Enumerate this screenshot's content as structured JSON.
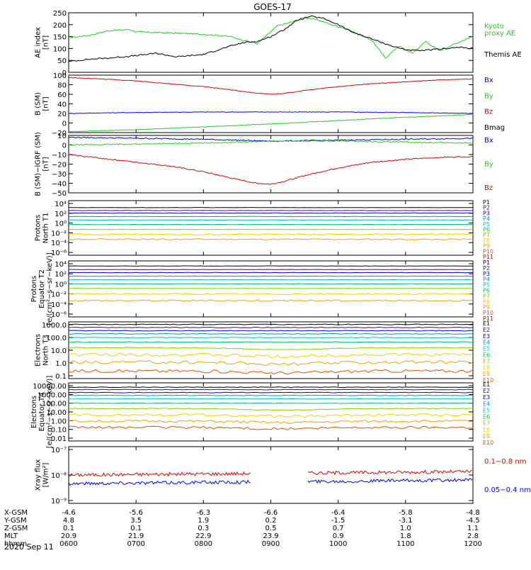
{
  "title": "GOES-17",
  "date_label": "2020 Sep 11",
  "xaxis": {
    "row_labels": [
      "X-GSM",
      "Y-GSM",
      "Z-GSM",
      "MLT",
      "hhmm"
    ],
    "rows": [
      [
        "-4.6",
        "-5.6",
        "-6.3",
        "-6.6",
        "-6.4",
        "-5.8",
        "-4.8"
      ],
      [
        "4.8",
        "3.5",
        "1.9",
        "0.2",
        "-1.5",
        "-3.1",
        "-4.5"
      ],
      [
        "0.1",
        "0.1",
        "0.3",
        "0.5",
        "0.7",
        "1.0",
        "1.1"
      ],
      [
        "20.9",
        "21.9",
        "22.9",
        "23.9",
        "0.9",
        "1.8",
        "2.8"
      ],
      [
        "0600",
        "0700",
        "0800",
        "0900",
        "1000",
        "1100",
        "1200"
      ]
    ]
  },
  "colors": {
    "black": "#000000",
    "blue": "#0000ff",
    "green": "#22cc22",
    "red": "#dd0000",
    "p": [
      "#000000",
      "#3a1060",
      "#0000cc",
      "#0090e0",
      "#00c0c0",
      "#00c060",
      "#80d000",
      "#f0d000",
      "#f0a000",
      "#e05000",
      "#cc0000"
    ]
  },
  "chart_data": [
    {
      "type": "line",
      "id": "ae",
      "ylabel": [
        "AE index",
        "[nT]"
      ],
      "ylim": [
        0,
        250
      ],
      "yticks": [
        "0",
        "50",
        "100",
        "150",
        "200",
        "250"
      ],
      "x": [
        6,
        7,
        8,
        9,
        10,
        11,
        12
      ],
      "series": [
        {
          "name": "Kyoto proxy AE",
          "x": [
            6.0,
            6.3,
            6.6,
            6.9,
            7.0,
            7.5,
            8.0,
            8.4,
            8.6,
            8.8,
            9.0,
            9.1,
            9.3,
            9.5,
            9.7,
            9.9,
            10.1,
            10.3,
            10.5,
            10.7,
            10.9,
            11.1,
            11.3,
            11.5,
            11.7,
            11.9,
            12.0
          ],
          "values": [
            145,
            155,
            175,
            180,
            170,
            165,
            160,
            150,
            135,
            120,
            170,
            195,
            210,
            230,
            220,
            200,
            185,
            160,
            135,
            60,
            110,
            80,
            130,
            90,
            115,
            140,
            150
          ]
        },
        {
          "name": "Themis AE",
          "x": [
            6.0,
            6.3,
            6.6,
            7.0,
            7.3,
            7.6,
            8.0,
            8.4,
            8.6,
            8.8,
            9.0,
            9.2,
            9.4,
            9.6,
            9.8,
            10.0,
            10.2,
            10.4,
            10.6,
            10.8,
            11.0,
            11.2,
            11.4,
            11.6,
            11.8,
            12.0
          ],
          "values": [
            45,
            55,
            60,
            70,
            80,
            65,
            75,
            110,
            125,
            130,
            150,
            180,
            220,
            235,
            225,
            200,
            170,
            150,
            130,
            110,
            95,
            90,
            95,
            100,
            105,
            100
          ]
        }
      ],
      "legend_outside": [
        {
          "text": "Kyoto",
          "color_key": "green"
        },
        {
          "text": "proxy AE",
          "color_key": "green"
        },
        {
          "text": "Themis AE",
          "color_key": "black"
        }
      ]
    },
    {
      "type": "line",
      "id": "bsm",
      "ylabel": [
        "B (SM)",
        "[nT]"
      ],
      "ylim": [
        -20,
        100
      ],
      "yticks": [
        "−20",
        "0",
        "20",
        "40",
        "60",
        "80",
        "100"
      ],
      "series": [
        {
          "name": "Bx",
          "x": [
            6,
            7,
            8,
            9,
            10,
            11,
            12
          ],
          "values": [
            20,
            22,
            23,
            23,
            23,
            22,
            20
          ]
        },
        {
          "name": "By",
          "x": [
            6,
            7,
            8,
            9,
            10,
            11,
            12
          ],
          "values": [
            -18,
            -14,
            -8,
            -2,
            5,
            12,
            18
          ]
        },
        {
          "name": "Bz",
          "x": [
            6,
            6.5,
            7,
            7.5,
            8,
            8.5,
            8.8,
            9.0,
            9.2,
            9.5,
            10,
            10.5,
            11,
            11.5,
            12
          ],
          "values": [
            95,
            92,
            88,
            82,
            76,
            68,
            62,
            60,
            62,
            68,
            76,
            82,
            86,
            90,
            92
          ]
        }
      ],
      "legend_outside": [
        {
          "text": "Bx",
          "color_key": "blue"
        },
        {
          "text": "By",
          "color_key": "green"
        },
        {
          "text": "Bz",
          "color_key": "red"
        },
        {
          "text": "Bmag",
          "color_key": "black"
        }
      ]
    },
    {
      "type": "line",
      "id": "bigrf",
      "ylabel": [
        "B (SM)−IGRF (SM)",
        "[nT]"
      ],
      "ylim": [
        -50,
        10
      ],
      "yticks": [
        "−50",
        "−40",
        "−30",
        "−20",
        "−10",
        "0",
        "10"
      ],
      "series": [
        {
          "name": "Bx",
          "x": [
            6,
            7,
            8,
            9,
            10,
            11,
            12
          ],
          "values": [
            8,
            7,
            6,
            4,
            5,
            6,
            7
          ]
        },
        {
          "name": "By",
          "x": [
            6,
            7,
            8,
            9,
            10,
            11,
            12
          ],
          "values": [
            0,
            1,
            2,
            4,
            4,
            3,
            2
          ]
        },
        {
          "name": "Bz",
          "x": [
            6,
            6.5,
            7,
            7.5,
            8,
            8.5,
            8.8,
            9.0,
            9.2,
            9.5,
            10,
            10.5,
            11,
            11.5,
            12
          ],
          "values": [
            -10,
            -14,
            -18,
            -22,
            -28,
            -36,
            -40,
            -41,
            -38,
            -32,
            -24,
            -18,
            -15,
            -13,
            -12
          ]
        }
      ],
      "legend_outside": [
        {
          "text": "Bx",
          "color_key": "blue"
        },
        {
          "text": "By",
          "color_key": "green"
        },
        {
          "text": "Bz",
          "color_key": "red"
        }
      ]
    },
    {
      "type": "line",
      "id": "protons_n",
      "ylabel": [
        "Protons",
        "North T1"
      ],
      "ylog": true,
      "ylim": [
        -7,
        4
      ],
      "yticks": [
        "10⁴",
        "10²",
        "10⁰",
        "10⁻²",
        "10⁻⁴",
        "10⁻⁶"
      ],
      "channel_labels": [
        "P1",
        "P2",
        "P3",
        "P4",
        "P5",
        "P6",
        "P7",
        "P8",
        "P9",
        "P10",
        "P11"
      ],
      "series": [
        {
          "name": "P1",
          "log10": 2.6
        },
        {
          "name": "P2",
          "log10": 2.0
        },
        {
          "name": "P3",
          "log10": 1.5
        },
        {
          "name": "P4",
          "log10": 0.8
        },
        {
          "name": "P5",
          "log10": 0.1
        },
        {
          "name": "P6",
          "log10": -0.8
        },
        {
          "name": "P7",
          "log10": -1.8
        },
        {
          "name": "P8",
          "log10": -2.8
        },
        {
          "name": "P9",
          "log10": -3.8
        }
      ]
    },
    {
      "type": "line",
      "id": "protons_e",
      "ylabel": [
        "Protons",
        "Equator T2",
        "[e/(cm²−s−sr−keV)]"
      ],
      "ylog": true,
      "ylim": [
        -7,
        4
      ],
      "yticks": [
        "10⁴",
        "10²",
        "10⁰",
        "10⁻²",
        "10⁻⁴",
        "10⁻⁶"
      ],
      "channel_labels": [
        "P1",
        "P2",
        "P3",
        "P4",
        "P5",
        "P6",
        "P7",
        "P8",
        "P9",
        "P10",
        "P11"
      ],
      "series": [
        {
          "name": "P1",
          "log10": 3.0
        },
        {
          "name": "P2",
          "log10": 2.3
        },
        {
          "name": "P3",
          "log10": 1.7
        },
        {
          "name": "P4",
          "log10": 1.0
        },
        {
          "name": "P5",
          "log10": 0.3
        },
        {
          "name": "P6",
          "log10": -0.5
        },
        {
          "name": "P7",
          "log10": -1.4
        },
        {
          "name": "P8",
          "log10": -2.5
        },
        {
          "name": "P9",
          "log10": -3.8
        }
      ]
    },
    {
      "type": "line",
      "id": "electrons_n",
      "ylabel": [
        "Electrons",
        "North T3"
      ],
      "ylog": true,
      "ylim": [
        -1,
        3.5
      ],
      "yticks": [
        "1000.0",
        "100.0",
        "10.0",
        "1.0",
        "0.1"
      ],
      "channel_labels": [
        "E1",
        "E2",
        "E3",
        "E4",
        "E5",
        "E6",
        "E7",
        "E8",
        "E9",
        "E10"
      ],
      "series": [
        {
          "name": "E1",
          "log10": 3.3
        },
        {
          "name": "E2",
          "log10": 3.05
        },
        {
          "name": "E3",
          "log10": 2.8
        },
        {
          "name": "E4",
          "log10": 2.55
        },
        {
          "name": "E5",
          "log10": 2.25
        },
        {
          "name": "E6",
          "log10": 1.9
        },
        {
          "name": "E7",
          "log10": 1.45
        },
        {
          "name": "E8",
          "log10": 0.9
        },
        {
          "name": "E9",
          "log10": 0.3
        },
        {
          "name": "E10",
          "log10": -0.4
        }
      ]
    },
    {
      "type": "line",
      "id": "electrons_e",
      "ylabel": [
        "Electrons",
        "Equator T4",
        "[e/(cm²−s−sr−keV)]"
      ],
      "ylog": true,
      "ylim": [
        -2,
        4
      ],
      "yticks": [
        "10000.00",
        "1000.00",
        "100.00",
        "10.00",
        "1.00",
        "0.10",
        "0.01"
      ],
      "channel_labels": [
        "E1",
        "E2",
        "E3",
        "E4",
        "E5",
        "E6",
        "E7",
        "E8",
        "E9",
        "E10"
      ],
      "series": [
        {
          "name": "E1",
          "log10": 3.55
        },
        {
          "name": "E2",
          "log10": 3.3
        },
        {
          "name": "E3",
          "log10": 3.0
        },
        {
          "name": "E4",
          "log10": 2.7
        },
        {
          "name": "E5",
          "log10": 2.35
        },
        {
          "name": "E6",
          "log10": 1.9
        },
        {
          "name": "E7",
          "log10": 1.35
        },
        {
          "name": "E8",
          "log10": 0.7
        },
        {
          "name": "E9",
          "log10": 0.05
        },
        {
          "name": "E10",
          "log10": -0.6
        }
      ]
    },
    {
      "type": "line",
      "id": "xray",
      "ylabel": [
        "Xray flux",
        "[W/m²]"
      ],
      "ylog": true,
      "ylim": [
        -9,
        -7
      ],
      "yticks": [
        "10⁻⁷",
        "10⁻⁸",
        "10⁻⁹"
      ],
      "series": [
        {
          "name": "0.1−0.8 nm",
          "log10": -8.0,
          "segments": [
            [
              6.0,
              8.7
            ],
            [
              9.55,
              12.0
            ]
          ]
        },
        {
          "name": "0.05−0.4 nm",
          "log10": -8.3,
          "segments": [
            [
              6.0,
              8.7
            ],
            [
              9.55,
              12.0
            ]
          ]
        }
      ],
      "legend_outside": [
        {
          "text": "0.1−0.8 nm",
          "color_key": "red"
        },
        {
          "text": "0.05−0.4 nm",
          "color_key": "blue"
        }
      ]
    }
  ]
}
